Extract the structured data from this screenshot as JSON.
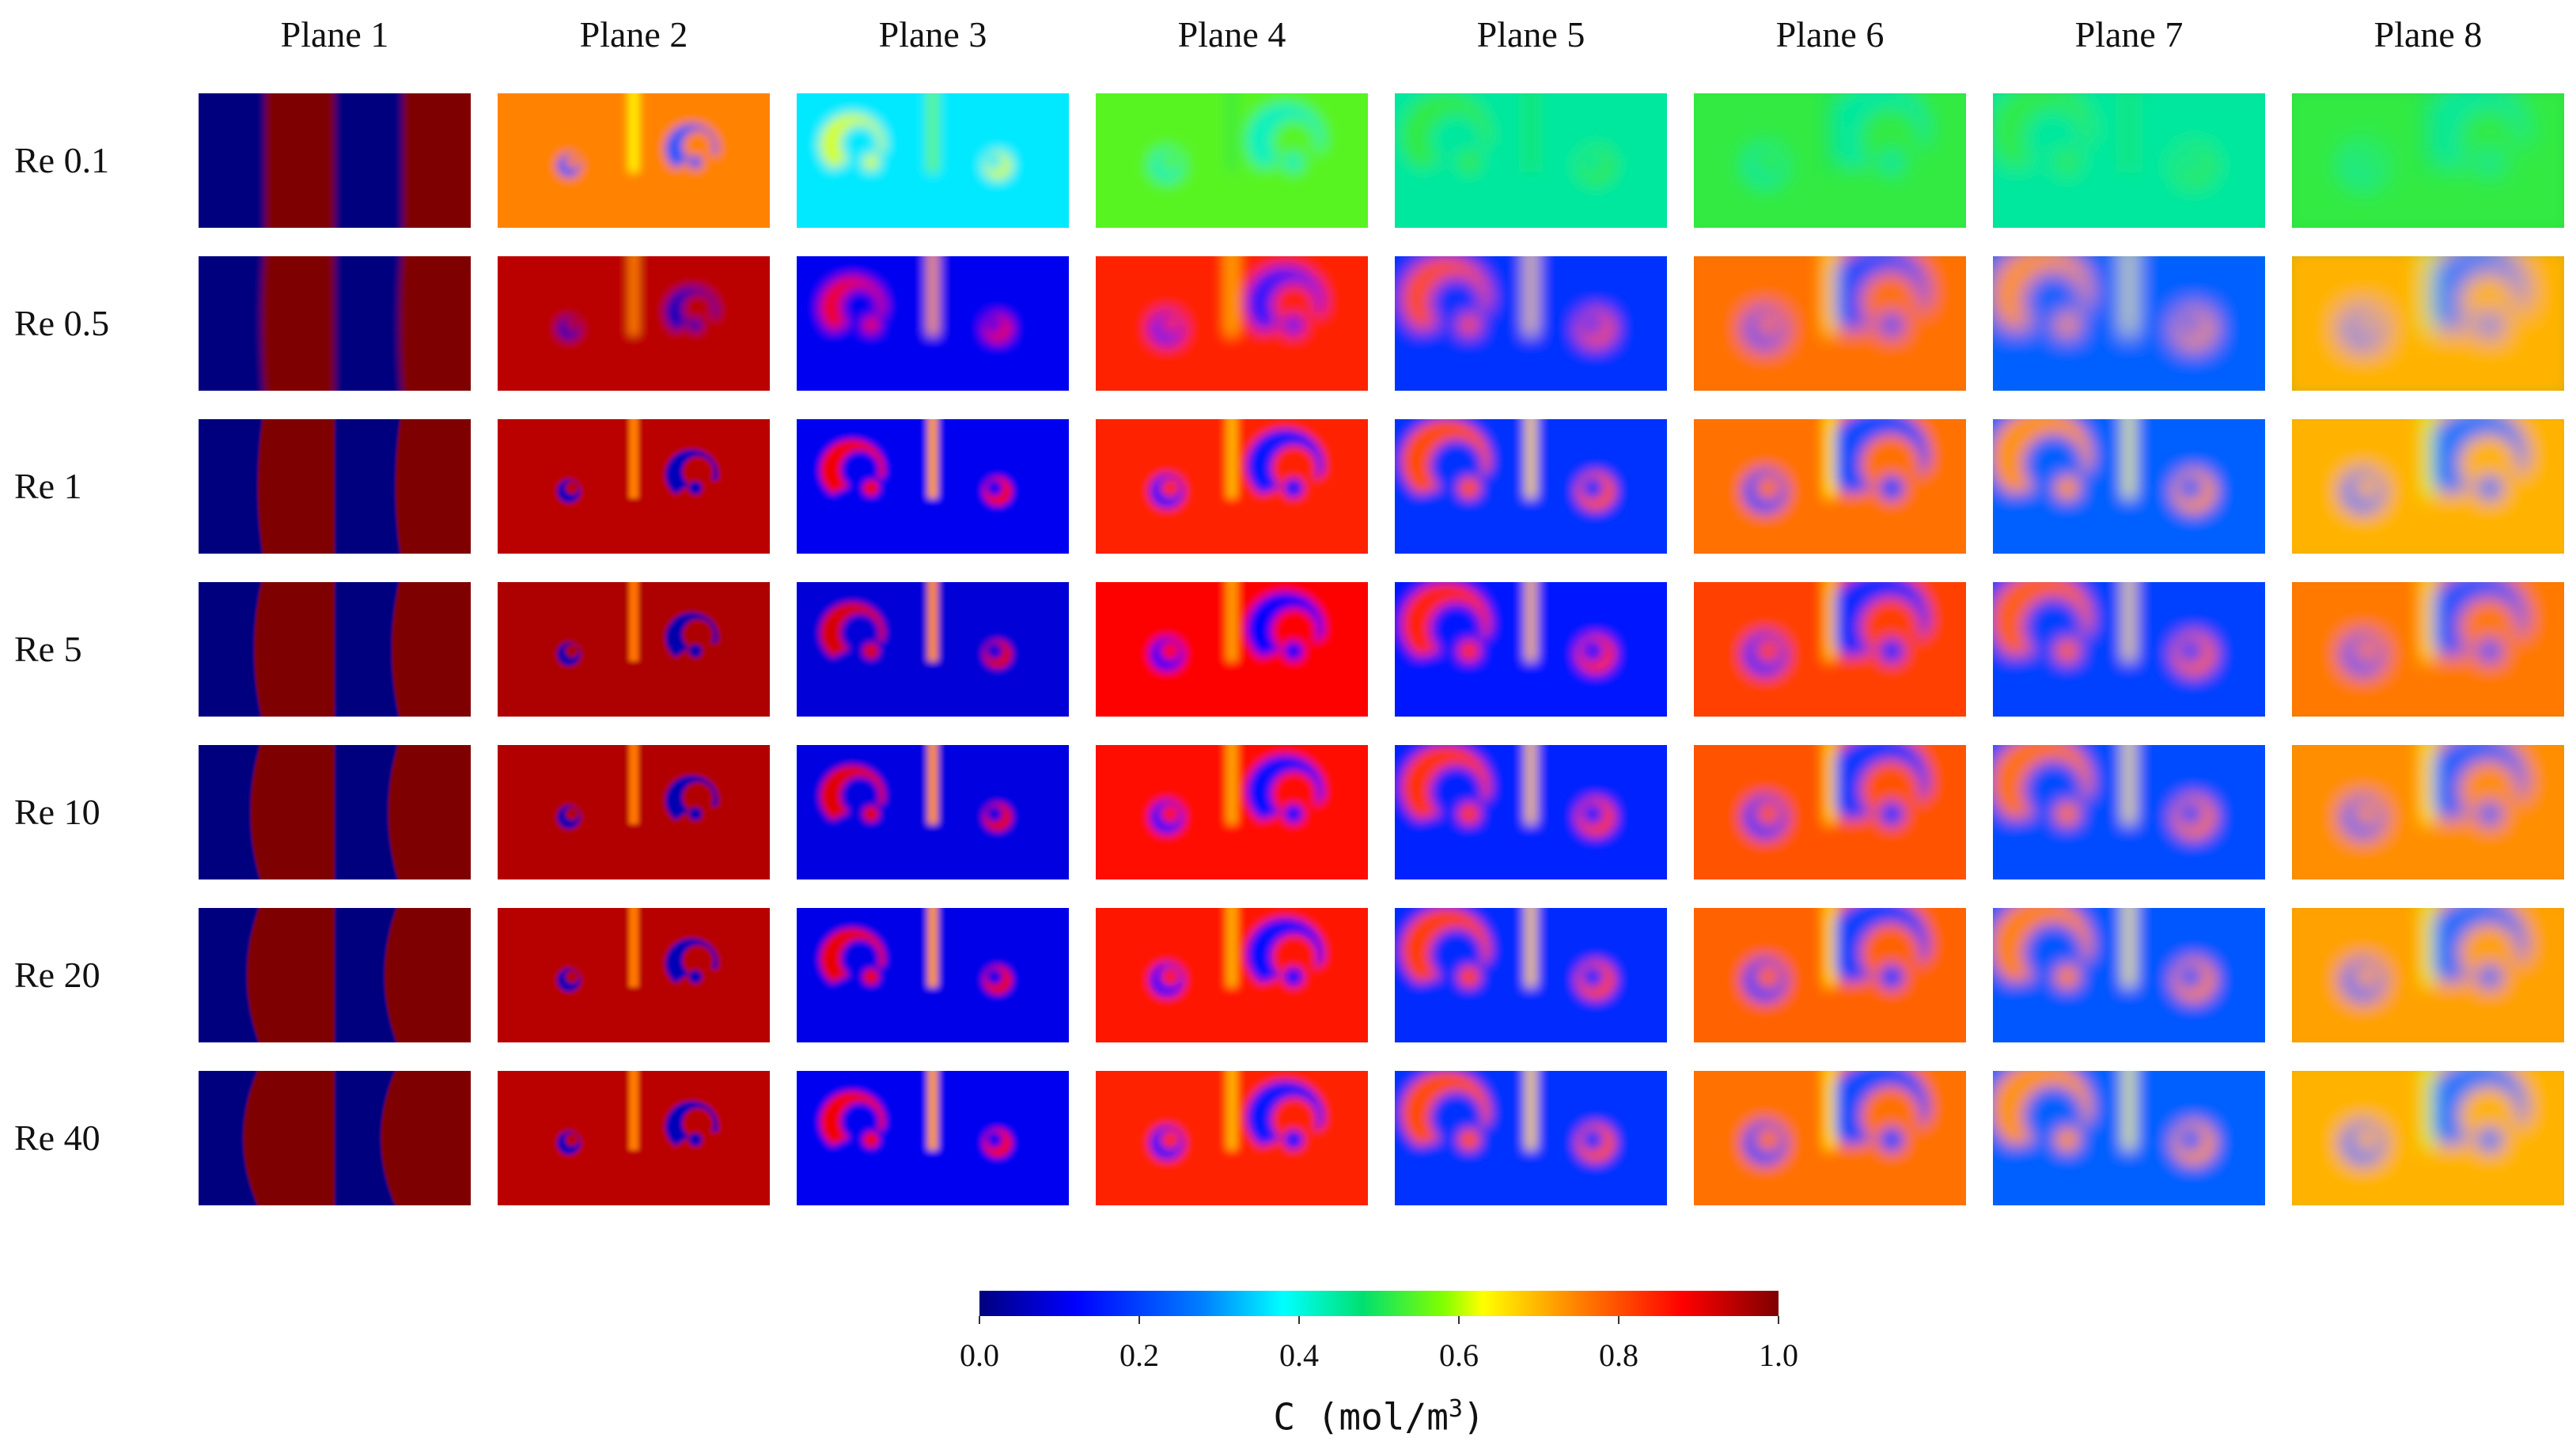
{
  "figure": {
    "columns": [
      "Plane 1",
      "Plane 2",
      "Plane 3",
      "Plane 4",
      "Plane 5",
      "Plane 6",
      "Plane 7",
      "Plane 8"
    ],
    "rows": [
      "Re 0.1",
      "Re 0.5",
      "Re 1",
      "Re 5",
      "Re 10",
      "Re 20",
      "Re 40"
    ]
  },
  "colorbar": {
    "ticks": [
      "0.0",
      "0.2",
      "0.4",
      "0.6",
      "0.8",
      "1.0"
    ],
    "title_main": "C (mol/m",
    "title_sup": "3",
    "title_end": ")"
  },
  "colors": {
    "low": "#00007f",
    "high": "#7f0000",
    "mid": "#00e070"
  }
}
